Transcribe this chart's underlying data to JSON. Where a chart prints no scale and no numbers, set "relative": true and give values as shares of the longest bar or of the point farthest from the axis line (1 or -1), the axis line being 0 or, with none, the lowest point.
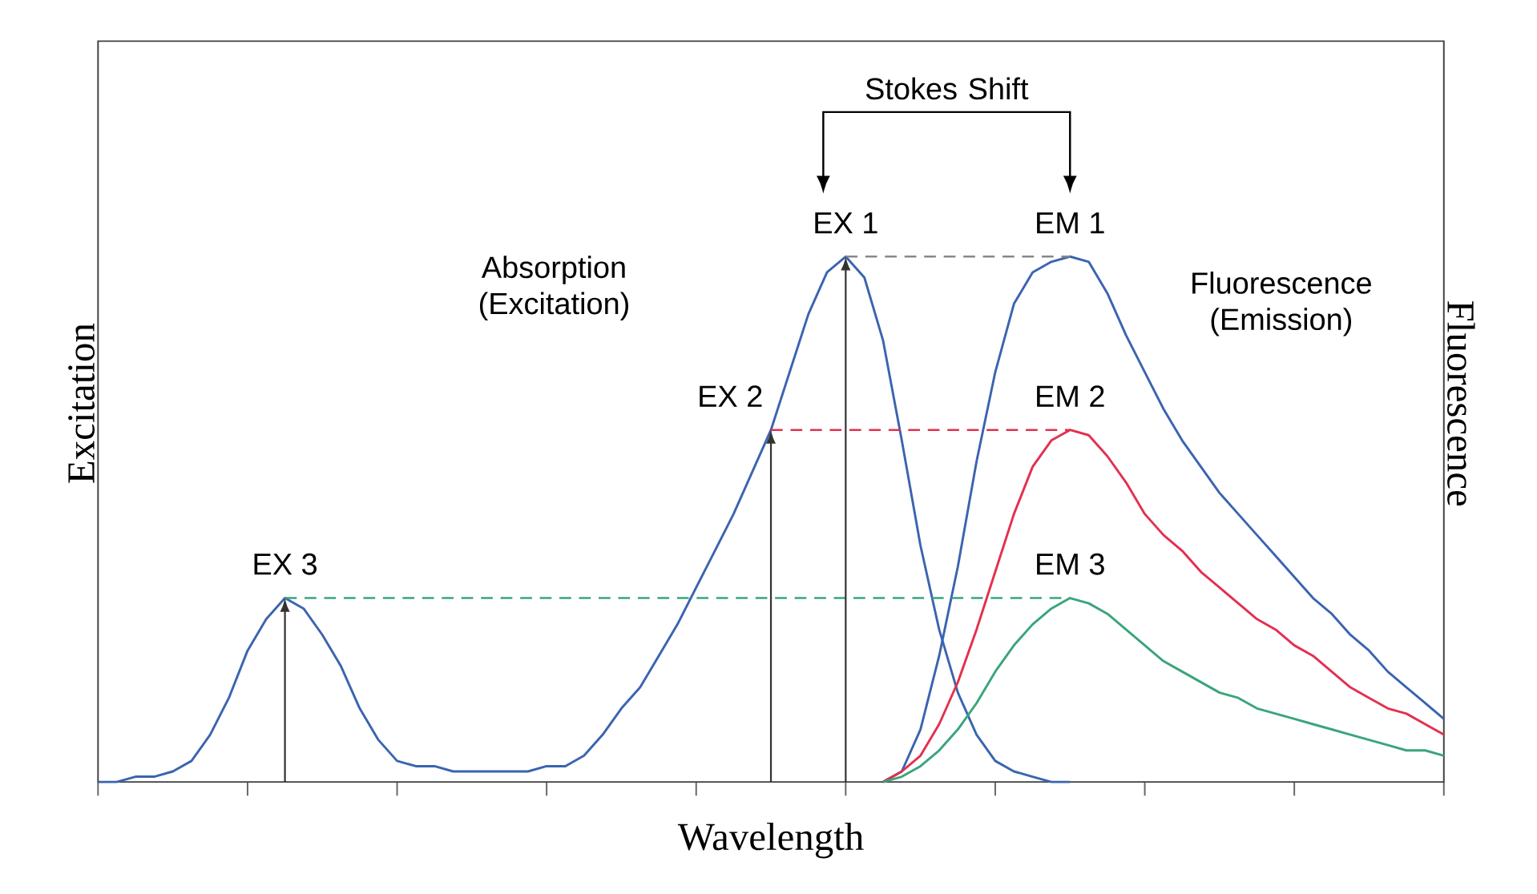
{
  "chart_data": {
    "type": "line",
    "relative": true,
    "xlabel": "Wavelength",
    "ylabel": "Excitation",
    "y2label": "Fluorescence",
    "categories": [
      null,
      null,
      null,
      null,
      null,
      null,
      null,
      null,
      null,
      null,
      null,
      null,
      null,
      null,
      null,
      null,
      null,
      null,
      null,
      null,
      null,
      null,
      null,
      null,
      null,
      null,
      null,
      null,
      null,
      null,
      null,
      null,
      null,
      null,
      null,
      null,
      null,
      null,
      null,
      null,
      null,
      null,
      null,
      null,
      null,
      null,
      null,
      null,
      null,
      null,
      null,
      null,
      null,
      null,
      null,
      null,
      null,
      null,
      null,
      null,
      null,
      null,
      null,
      null,
      null,
      null,
      null,
      null,
      null,
      null,
      null,
      null,
      null
    ],
    "series": [
      {
        "color": "#3b64b0",
        "values": [
          0,
          0,
          0.01,
          0.01,
          0.02,
          0.04,
          0.09,
          0.16,
          0.25,
          0.31,
          0.35,
          0.33,
          0.28,
          0.22,
          0.14,
          0.08,
          0.04,
          0.03,
          0.03,
          0.02,
          0.02,
          0.02,
          0.02,
          0.02,
          0.03,
          0.03,
          0.05,
          0.09,
          0.14,
          0.18,
          0.24,
          0.3,
          0.37,
          0.44,
          0.51,
          0.59,
          0.67,
          0.78,
          0.89,
          0.97,
          1,
          0.96,
          0.84,
          0.65,
          0.45,
          0.29,
          0.17,
          0.09,
          0.04,
          0.02,
          0.01,
          0,
          0,
          null,
          null,
          null,
          null,
          null,
          null,
          null,
          null,
          null,
          null,
          null,
          null,
          null,
          null,
          null,
          null,
          null,
          null,
          null,
          null
        ]
      },
      {
        "color": "#3b64b0",
        "values": [
          null,
          null,
          null,
          null,
          null,
          null,
          null,
          null,
          null,
          null,
          null,
          null,
          null,
          null,
          null,
          null,
          null,
          null,
          null,
          null,
          null,
          null,
          null,
          null,
          null,
          null,
          null,
          null,
          null,
          null,
          null,
          null,
          null,
          null,
          null,
          null,
          null,
          null,
          null,
          null,
          null,
          null,
          0,
          0.02,
          0.1,
          0.24,
          0.41,
          0.61,
          0.78,
          0.91,
          0.97,
          0.99,
          1,
          0.99,
          0.93,
          0.85,
          0.78,
          0.71,
          0.65,
          0.6,
          0.55,
          0.51,
          0.47,
          0.43,
          0.39,
          0.35,
          0.32,
          0.28,
          0.25,
          0.21,
          0.18,
          0.15,
          0.12
        ]
      },
      {
        "color": "#e3304f",
        "values": [
          null,
          null,
          null,
          null,
          null,
          null,
          null,
          null,
          null,
          null,
          null,
          null,
          null,
          null,
          null,
          null,
          null,
          null,
          null,
          null,
          null,
          null,
          null,
          null,
          null,
          null,
          null,
          null,
          null,
          null,
          null,
          null,
          null,
          null,
          null,
          null,
          null,
          null,
          null,
          null,
          null,
          null,
          0,
          0.02,
          0.05,
          0.11,
          0.19,
          0.29,
          0.4,
          0.51,
          0.6,
          0.65,
          0.67,
          0.66,
          0.62,
          0.57,
          0.51,
          0.47,
          0.44,
          0.4,
          0.37,
          0.34,
          0.31,
          0.29,
          0.26,
          0.24,
          0.21,
          0.18,
          0.16,
          0.14,
          0.13,
          0.11,
          0.09
        ]
      },
      {
        "color": "#3aa57a",
        "values": [
          null,
          null,
          null,
          null,
          null,
          null,
          null,
          null,
          null,
          null,
          null,
          null,
          null,
          null,
          null,
          null,
          null,
          null,
          null,
          null,
          null,
          null,
          null,
          null,
          null,
          null,
          null,
          null,
          null,
          null,
          null,
          null,
          null,
          null,
          null,
          null,
          null,
          null,
          null,
          null,
          null,
          null,
          0,
          0.01,
          0.03,
          0.06,
          0.1,
          0.15,
          0.21,
          0.26,
          0.3,
          0.33,
          0.35,
          0.34,
          0.32,
          0.29,
          0.26,
          0.23,
          0.21,
          0.19,
          0.17,
          0.16,
          0.14,
          0.13,
          0.12,
          0.11,
          0.1,
          0.09,
          0.08,
          0.07,
          0.06,
          0.06,
          0.05
        ]
      },
      {
        "color": "#888888",
        "line_style": "dashed",
        "values": [
          null,
          null,
          null,
          null,
          null,
          null,
          null,
          null,
          null,
          null,
          null,
          null,
          null,
          null,
          null,
          null,
          null,
          null,
          null,
          null,
          null,
          null,
          null,
          null,
          null,
          null,
          null,
          null,
          null,
          null,
          null,
          null,
          null,
          null,
          null,
          null,
          null,
          null,
          null,
          null,
          1,
          1,
          1,
          1,
          1,
          1,
          1,
          1,
          1,
          1,
          1,
          1,
          1,
          null,
          null,
          null,
          null,
          null,
          null,
          null,
          null,
          null,
          null,
          null,
          null,
          null,
          null,
          null,
          null,
          null,
          null,
          null,
          null
        ]
      },
      {
        "color": "#e3304f",
        "line_style": "dashed",
        "values": [
          null,
          null,
          null,
          null,
          null,
          null,
          null,
          null,
          null,
          null,
          null,
          null,
          null,
          null,
          null,
          null,
          null,
          null,
          null,
          null,
          null,
          null,
          null,
          null,
          null,
          null,
          null,
          null,
          null,
          null,
          null,
          null,
          null,
          null,
          null,
          null,
          0.67,
          0.67,
          0.67,
          0.67,
          0.67,
          0.67,
          0.67,
          0.67,
          0.67,
          0.67,
          0.67,
          0.67,
          0.67,
          0.67,
          0.67,
          0.67,
          0.67,
          null,
          null,
          null,
          null,
          null,
          null,
          null,
          null,
          null,
          null,
          null,
          null,
          null,
          null,
          null,
          null,
          null,
          null,
          null,
          null
        ]
      },
      {
        "color": "#3aa57a",
        "line_style": "dashed",
        "values": [
          null,
          null,
          null,
          null,
          null,
          null,
          null,
          null,
          null,
          null,
          0.35,
          0.35,
          0.35,
          0.35,
          0.35,
          0.35,
          0.35,
          0.35,
          0.35,
          0.35,
          0.35,
          0.35,
          0.35,
          0.35,
          0.35,
          0.35,
          0.35,
          0.35,
          0.35,
          0.35,
          0.35,
          0.35,
          0.35,
          0.35,
          0.35,
          0.35,
          0.35,
          0.35,
          0.35,
          0.35,
          0.35,
          0.35,
          0.35,
          0.35,
          0.35,
          0.35,
          0.35,
          0.35,
          0.35,
          0.35,
          0.35,
          0.35,
          0.35,
          null,
          null,
          null,
          null,
          null,
          null,
          null,
          null,
          null,
          null,
          null,
          null,
          null,
          null,
          null,
          null,
          null,
          null,
          null,
          null
        ]
      }
    ],
    "annotations": [
      "EX 1",
      "EM 1",
      "EX 2",
      "EM 2",
      "EX 3",
      "EM 3",
      "Absorption (Excitation)",
      "Fluorescence (Emission)",
      "Stokes Shift"
    ]
  }
}
